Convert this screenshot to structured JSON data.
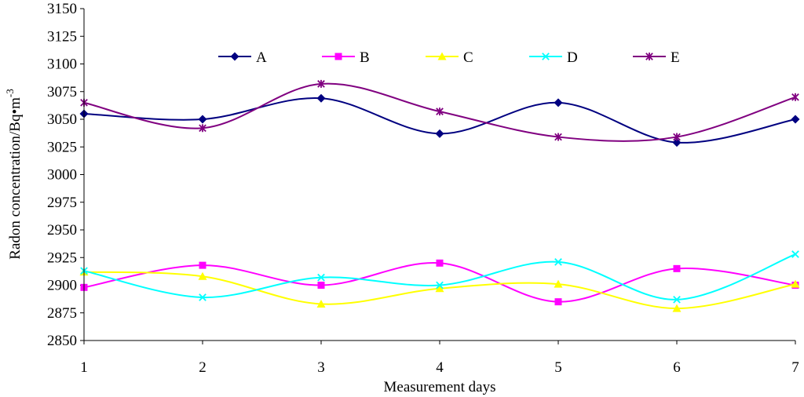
{
  "chart_data": {
    "type": "line",
    "title": "",
    "xlabel": "Measurement days",
    "ylabel": "Radon concentration/Bq•m",
    "ylabel_superscript": "-3",
    "x": [
      1,
      2,
      3,
      4,
      5,
      6,
      7
    ],
    "xlim": [
      1,
      7
    ],
    "ylim": [
      2850,
      3150
    ],
    "yticks": [
      2850,
      2875,
      2900,
      2925,
      2950,
      2975,
      3000,
      3025,
      3050,
      3075,
      3100,
      3125,
      3150
    ],
    "grid": false,
    "smooth": true,
    "legend_position": "top",
    "series": [
      {
        "name": "A",
        "color": "#000080",
        "marker": "diamond",
        "values": [
          3055,
          3050,
          3069,
          3037,
          3065,
          3029,
          3050
        ]
      },
      {
        "name": "B",
        "color": "#ff00ff",
        "marker": "square",
        "values": [
          2898,
          2918,
          2900,
          2920,
          2885,
          2915,
          2900
        ]
      },
      {
        "name": "C",
        "color": "#ffff00",
        "marker": "triangle",
        "values": [
          2912,
          2908,
          2883,
          2897,
          2901,
          2879,
          2901
        ]
      },
      {
        "name": "D",
        "color": "#00ffff",
        "marker": "x",
        "values": [
          2913,
          2889,
          2907,
          2900,
          2921,
          2887,
          2928
        ]
      },
      {
        "name": "E",
        "color": "#800080",
        "marker": "star",
        "values": [
          3065,
          3042,
          3082,
          3057,
          3034,
          3034,
          3070
        ]
      }
    ]
  }
}
